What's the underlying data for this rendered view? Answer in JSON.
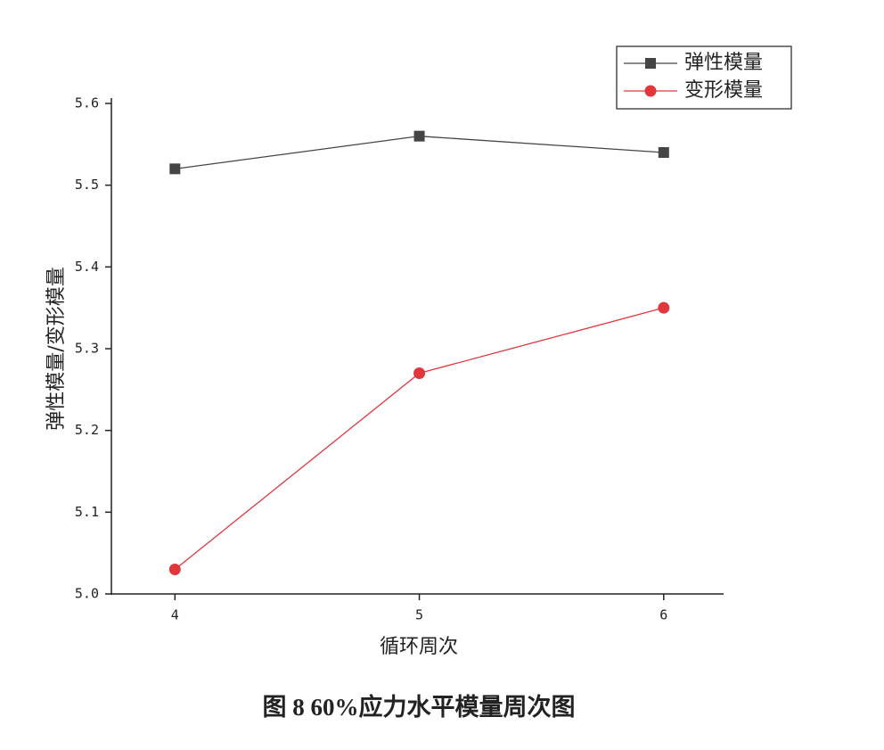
{
  "chart_data": {
    "type": "line",
    "caption": "图 8  60%应力水平模量周次图",
    "x_label": "循环周次",
    "y_label": "弹性模量/变形模量",
    "x": [
      4,
      5,
      6
    ],
    "xlim": [
      3.74,
      6.245
    ],
    "xticks": [
      4,
      5,
      6
    ],
    "ylim": [
      5.0,
      5.6
    ],
    "yticks": [
      {
        "value": 5.0,
        "label": "5.0"
      },
      5.1,
      5.2,
      5.3,
      5.4,
      5.5,
      5.6
    ],
    "legend": "upper right",
    "series": [
      {
        "name": "弹性模量",
        "color": "#454545",
        "marker": "square",
        "values": [
          5.52,
          5.56,
          5.54
        ]
      },
      {
        "name": "变形模量",
        "color": "#e0363c",
        "marker": "circle",
        "values": [
          5.03,
          5.27,
          5.35
        ]
      }
    ]
  }
}
